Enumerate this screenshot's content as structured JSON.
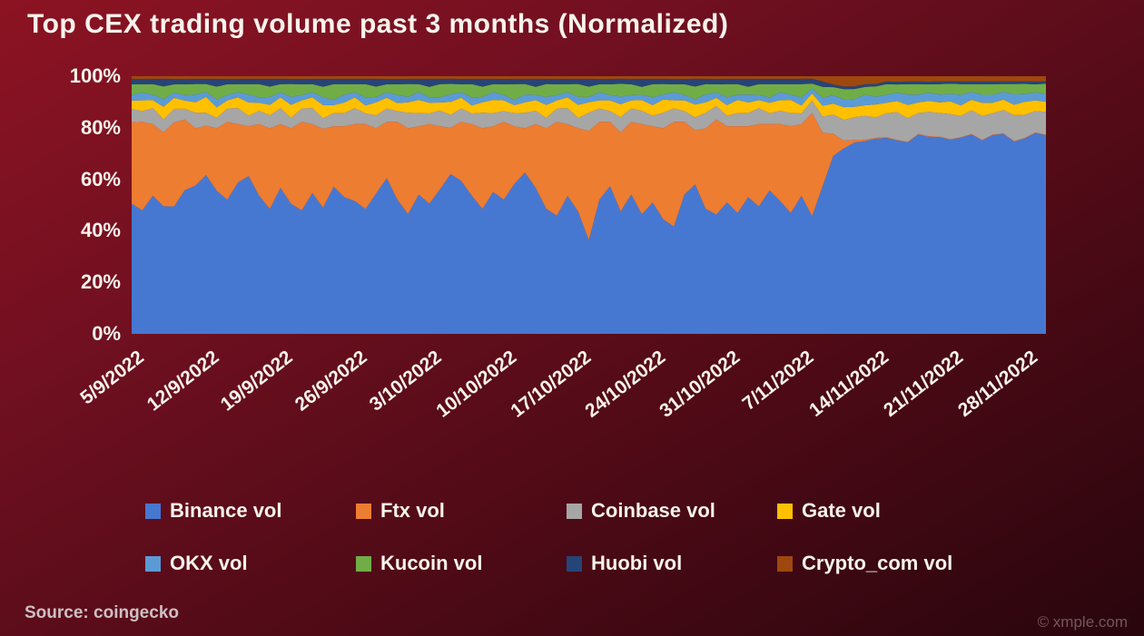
{
  "title": "Top CEX trading volume past 3 months (Normalized)",
  "source": "Source: coingecko",
  "watermark": "© xmple.com",
  "colors": {
    "background_top": "#8c1322",
    "background_bottom": "#29050d",
    "text": "#f8f3ec"
  },
  "chart_data": {
    "type": "area",
    "stacked": true,
    "normalized_to_100": true,
    "title": "Top CEX trading volume past 3 months (Normalized)",
    "xlabel": "",
    "ylabel": "",
    "ylim": [
      0,
      100
    ],
    "grid": false,
    "legend_position": "bottom",
    "y_ticks": [
      "0%",
      "20%",
      "40%",
      "60%",
      "80%",
      "100%"
    ],
    "x_tick_labels": [
      "5/9/2022",
      "12/9/2022",
      "19/9/2022",
      "26/9/2022",
      "3/10/2022",
      "10/10/2022",
      "17/10/2022",
      "24/10/2022",
      "31/10/2022",
      "7/11/2022",
      "14/11/2022",
      "21/11/2022",
      "28/11/2022"
    ],
    "x_tick_indices": [
      0,
      7,
      14,
      21,
      28,
      35,
      42,
      49,
      56,
      63,
      70,
      77,
      84
    ],
    "n_points": 87,
    "series": [
      {
        "name": "Binance vol",
        "color": "#4678d2",
        "values": [
          48,
          46,
          52,
          50,
          47,
          53,
          57,
          61,
          55,
          50,
          57,
          60,
          52,
          48,
          55,
          50,
          46,
          53,
          48,
          56,
          52,
          50,
          47,
          54,
          58,
          50,
          46,
          53,
          49,
          55,
          62,
          57,
          52,
          48,
          54,
          50,
          57,
          62,
          55,
          48,
          44,
          52,
          47,
          36,
          50,
          55,
          48,
          52,
          45,
          50,
          44,
          40,
          52,
          58,
          48,
          44,
          50,
          46,
          52,
          48,
          54,
          50,
          46,
          52,
          48,
          55,
          65,
          72,
          75,
          73,
          76,
          74,
          70,
          73,
          76,
          72,
          75,
          77,
          74,
          76,
          73,
          75,
          77,
          74,
          76,
          75,
          78
        ]
      },
      {
        "name": "Ftx vol",
        "color": "#ed7d31",
        "values": [
          30,
          33,
          27,
          29,
          31,
          26,
          22,
          19,
          24,
          29,
          22,
          19,
          27,
          31,
          24,
          29,
          33,
          26,
          30,
          23,
          27,
          29,
          32,
          25,
          21,
          29,
          33,
          26,
          30,
          24,
          18,
          22,
          27,
          31,
          25,
          29,
          22,
          17,
          24,
          31,
          35,
          27,
          32,
          42,
          29,
          24,
          31,
          27,
          34,
          29,
          35,
          39,
          27,
          21,
          31,
          35,
          29,
          33,
          27,
          31,
          25,
          29,
          33,
          27,
          42,
          20,
          8,
          3,
          1,
          0.5,
          0.3,
          0.3,
          0.2,
          0.2,
          0.2,
          0.2,
          0.2,
          0.2,
          0.2,
          0.2,
          0.2,
          0.2,
          0.2,
          0.2,
          0.2,
          0.2,
          0.2
        ]
      },
      {
        "name": "Coinbase vol",
        "color": "#a6a6a6",
        "values": [
          5,
          4,
          6,
          5,
          5,
          4,
          6,
          5,
          4,
          5,
          6,
          4,
          5,
          5,
          6,
          4,
          5,
          6,
          4,
          5,
          5,
          6,
          4,
          5,
          5,
          4,
          6,
          5,
          4,
          6,
          5,
          5,
          4,
          6,
          5,
          4,
          5,
          6,
          5,
          4,
          5,
          6,
          4,
          7,
          5,
          4,
          6,
          5,
          5,
          4,
          6,
          5,
          4,
          5,
          6,
          5,
          4,
          5,
          5,
          6,
          4,
          5,
          5,
          4,
          5,
          6,
          7,
          8,
          9,
          9,
          8,
          9,
          10,
          9,
          8,
          9,
          9,
          10,
          8,
          9,
          9,
          8,
          9,
          10,
          9,
          8,
          9
        ]
      },
      {
        "name": "Gate vol",
        "color": "#ffc000",
        "values": [
          3,
          4,
          3,
          5,
          4,
          3,
          4,
          6,
          4,
          3,
          4,
          5,
          3,
          4,
          4,
          5,
          3,
          4,
          5,
          3,
          4,
          4,
          3,
          5,
          4,
          3,
          4,
          5,
          4,
          3,
          5,
          4,
          3,
          4,
          5,
          4,
          3,
          4,
          4,
          5,
          3,
          4,
          5,
          4,
          3,
          4,
          5,
          3,
          4,
          4,
          5,
          3,
          4,
          5,
          4,
          3,
          4,
          5,
          4,
          3,
          4,
          4,
          5,
          3,
          3,
          4,
          4,
          5,
          4,
          4,
          5,
          4,
          4,
          5,
          4,
          4,
          4,
          5,
          4,
          4,
          5,
          4,
          4,
          4,
          5,
          4,
          4
        ]
      },
      {
        "name": "OKX vol",
        "color": "#5b9bd5",
        "values": [
          2,
          3,
          2,
          3,
          2,
          2,
          3,
          2,
          3,
          2,
          2,
          3,
          2,
          3,
          2,
          3,
          2,
          2,
          3,
          2,
          3,
          2,
          3,
          2,
          2,
          3,
          2,
          3,
          2,
          2,
          3,
          2,
          3,
          2,
          3,
          2,
          2,
          3,
          2,
          3,
          2,
          2,
          3,
          2,
          3,
          2,
          3,
          2,
          2,
          3,
          2,
          3,
          2,
          2,
          3,
          2,
          3,
          2,
          3,
          2,
          2,
          3,
          2,
          3,
          2,
          3,
          3,
          3,
          3,
          4,
          3,
          3,
          3,
          4,
          3,
          3,
          3,
          3,
          4,
          3,
          3,
          3,
          3,
          4,
          3,
          3,
          3
        ]
      },
      {
        "name": "Kucoin vol",
        "color": "#70ad47",
        "values": [
          4,
          3,
          4,
          5,
          3,
          4,
          4,
          3,
          5,
          4,
          3,
          4,
          5,
          4,
          3,
          5,
          4,
          3,
          4,
          6,
          4,
          3,
          5,
          4,
          3,
          4,
          5,
          3,
          4,
          5,
          4,
          3,
          5,
          4,
          3,
          4,
          6,
          4,
          3,
          5,
          4,
          3,
          5,
          4,
          3,
          4,
          5,
          4,
          3,
          5,
          4,
          3,
          4,
          5,
          4,
          3,
          5,
          4,
          3,
          4,
          5,
          3,
          4,
          5,
          2,
          4,
          3,
          4,
          4,
          3,
          4,
          4,
          3,
          4,
          4,
          3,
          4,
          4,
          4,
          3,
          4,
          4,
          3,
          4,
          4,
          3,
          4
        ]
      },
      {
        "name": "Huobi vol",
        "color": "#264478",
        "values": [
          2,
          2,
          2,
          3,
          2,
          2,
          2,
          2,
          3,
          2,
          2,
          2,
          2,
          3,
          2,
          2,
          2,
          2,
          3,
          2,
          2,
          2,
          2,
          3,
          2,
          2,
          2,
          2,
          3,
          2,
          2,
          2,
          2,
          3,
          2,
          2,
          2,
          2,
          3,
          2,
          2,
          2,
          2,
          3,
          2,
          2,
          2,
          2,
          3,
          2,
          2,
          2,
          2,
          3,
          2,
          2,
          2,
          2,
          3,
          2,
          2,
          2,
          2,
          2,
          2,
          2,
          1,
          1,
          1,
          1,
          1,
          1,
          1,
          1,
          1,
          1,
          1,
          1,
          1,
          1,
          1,
          1,
          1,
          1,
          1,
          1,
          1
        ]
      },
      {
        "name": "Crypto_com vol",
        "color": "#9e480e",
        "values": [
          1,
          1,
          1,
          1,
          1,
          1,
          1,
          1,
          1,
          1,
          1,
          1,
          1,
          1,
          1,
          1,
          1,
          1,
          1,
          1,
          1,
          1,
          1,
          1,
          1,
          1,
          1,
          1,
          1,
          1,
          1,
          1,
          1,
          1,
          1,
          1,
          1,
          1,
          1,
          1,
          1,
          1,
          1,
          1,
          1,
          1,
          1,
          1,
          1,
          1,
          1,
          1,
          1,
          1,
          1,
          1,
          1,
          1,
          1,
          1,
          1,
          1,
          1,
          1,
          1,
          2,
          3,
          4,
          4,
          3,
          3,
          2,
          2,
          2,
          2,
          2,
          2,
          2,
          2,
          2,
          2,
          2,
          2,
          2,
          2,
          2,
          2
        ]
      }
    ]
  }
}
